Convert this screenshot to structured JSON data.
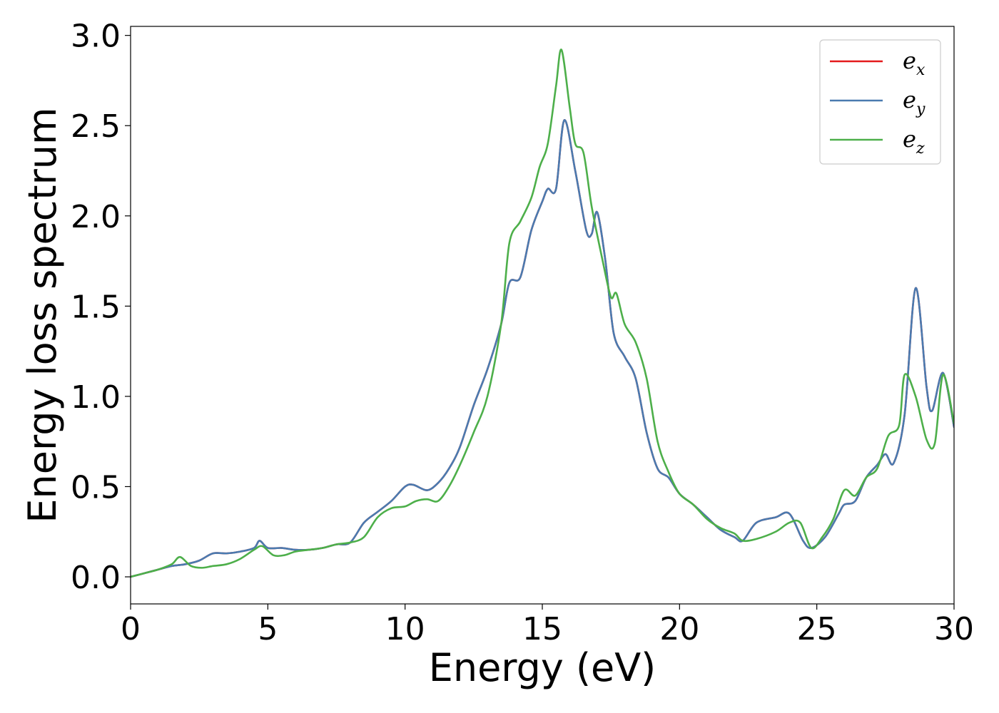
{
  "chart_data": {
    "type": "line",
    "xlabel": "Energy (eV)",
    "ylabel": "Energy loss spectrum",
    "xlim": [
      0,
      30
    ],
    "ylim": [
      -0.15,
      3.05
    ],
    "xticks": [
      0,
      5,
      10,
      15,
      20,
      25,
      30
    ],
    "yticks": [
      0.0,
      0.5,
      1.0,
      1.5,
      2.0,
      2.5,
      3.0
    ],
    "xtick_labels": [
      "0",
      "5",
      "10",
      "15",
      "20",
      "25",
      "30"
    ],
    "ytick_labels": [
      "0.0",
      "0.5",
      "1.0",
      "1.5",
      "2.0",
      "2.5",
      "3.0"
    ],
    "grid": false,
    "legend_position": "top-right",
    "colors": {
      "e_x": "#e41a1c",
      "e_y": "#4a7bb0",
      "e_z": "#4daf4a"
    },
    "series": [
      {
        "name": "e_x",
        "legend_base": "e",
        "legend_sub": "x",
        "color": "#e41a1c",
        "x": [
          0,
          0.5,
          1,
          1.5,
          2,
          2.5,
          3,
          3.5,
          4,
          4.5,
          4.7,
          5,
          5.5,
          6,
          6.5,
          7,
          7.5,
          8,
          8.5,
          9,
          9.5,
          10,
          10.3,
          10.8,
          11.2,
          11.6,
          12,
          12.5,
          13,
          13.5,
          13.8,
          14.2,
          14.6,
          15,
          15.2,
          15.5,
          15.8,
          16.2,
          16.6,
          16.8,
          17,
          17.3,
          17.6,
          18,
          18.4,
          18.8,
          19.2,
          19.6,
          20,
          20.5,
          21,
          21.5,
          22,
          22.3,
          22.8,
          23.5,
          24,
          24.5,
          24.8,
          25.3,
          25.8,
          26,
          26.4,
          26.8,
          27.2,
          27.5,
          27.8,
          28.2,
          28.6,
          29,
          29.2,
          29.6,
          30
        ],
        "y": [
          0.0,
          0.02,
          0.04,
          0.06,
          0.07,
          0.09,
          0.13,
          0.13,
          0.14,
          0.16,
          0.2,
          0.16,
          0.16,
          0.15,
          0.15,
          0.16,
          0.18,
          0.19,
          0.3,
          0.36,
          0.42,
          0.5,
          0.51,
          0.48,
          0.52,
          0.6,
          0.72,
          0.95,
          1.15,
          1.4,
          1.63,
          1.66,
          1.92,
          2.08,
          2.15,
          2.15,
          2.53,
          2.25,
          1.92,
          1.9,
          2.02,
          1.75,
          1.35,
          1.22,
          1.1,
          0.8,
          0.6,
          0.55,
          0.46,
          0.4,
          0.33,
          0.26,
          0.22,
          0.2,
          0.3,
          0.33,
          0.35,
          0.2,
          0.16,
          0.22,
          0.35,
          0.4,
          0.42,
          0.55,
          0.62,
          0.68,
          0.63,
          0.9,
          1.6,
          1.05,
          0.92,
          1.13,
          0.83
        ]
      },
      {
        "name": "e_y",
        "legend_base": "e",
        "legend_sub": "y",
        "color": "#4a7bb0",
        "x": [
          0,
          0.5,
          1,
          1.5,
          2,
          2.5,
          3,
          3.5,
          4,
          4.5,
          4.7,
          5,
          5.5,
          6,
          6.5,
          7,
          7.5,
          8,
          8.5,
          9,
          9.5,
          10,
          10.3,
          10.8,
          11.2,
          11.6,
          12,
          12.5,
          13,
          13.5,
          13.8,
          14.2,
          14.6,
          15,
          15.2,
          15.5,
          15.8,
          16.2,
          16.6,
          16.8,
          17,
          17.3,
          17.6,
          18,
          18.4,
          18.8,
          19.2,
          19.6,
          20,
          20.5,
          21,
          21.5,
          22,
          22.3,
          22.8,
          23.5,
          24,
          24.5,
          24.8,
          25.3,
          25.8,
          26,
          26.4,
          26.8,
          27.2,
          27.5,
          27.8,
          28.2,
          28.6,
          29,
          29.2,
          29.6,
          30
        ],
        "y": [
          0.0,
          0.02,
          0.04,
          0.06,
          0.07,
          0.09,
          0.13,
          0.13,
          0.14,
          0.16,
          0.2,
          0.16,
          0.16,
          0.15,
          0.15,
          0.16,
          0.18,
          0.19,
          0.3,
          0.36,
          0.42,
          0.5,
          0.51,
          0.48,
          0.52,
          0.6,
          0.72,
          0.95,
          1.15,
          1.4,
          1.63,
          1.66,
          1.92,
          2.08,
          2.15,
          2.15,
          2.53,
          2.25,
          1.92,
          1.9,
          2.02,
          1.75,
          1.35,
          1.22,
          1.1,
          0.8,
          0.6,
          0.55,
          0.46,
          0.4,
          0.33,
          0.26,
          0.22,
          0.2,
          0.3,
          0.33,
          0.35,
          0.2,
          0.16,
          0.22,
          0.35,
          0.4,
          0.42,
          0.55,
          0.62,
          0.68,
          0.63,
          0.9,
          1.6,
          1.05,
          0.92,
          1.13,
          0.83
        ]
      },
      {
        "name": "e_z",
        "legend_base": "e",
        "legend_sub": "z",
        "color": "#4daf4a",
        "x": [
          0,
          0.5,
          1,
          1.5,
          1.8,
          2.2,
          2.6,
          3,
          3.5,
          4,
          4.5,
          4.8,
          5.2,
          5.6,
          6,
          6.5,
          7,
          7.5,
          8,
          8.5,
          9,
          9.5,
          10,
          10.4,
          10.8,
          11.2,
          11.6,
          12,
          12.5,
          13,
          13.5,
          13.8,
          14.2,
          14.6,
          14.9,
          15.2,
          15.5,
          15.7,
          16,
          16.2,
          16.5,
          16.8,
          17.2,
          17.5,
          17.7,
          18,
          18.4,
          18.8,
          19.2,
          19.6,
          20,
          20.5,
          21,
          21.5,
          22,
          22.3,
          22.8,
          23.5,
          24,
          24.4,
          24.8,
          25.2,
          25.6,
          26,
          26.4,
          26.8,
          27.2,
          27.6,
          28,
          28.2,
          28.6,
          29,
          29.3,
          29.6,
          30
        ],
        "y": [
          0.0,
          0.02,
          0.04,
          0.07,
          0.11,
          0.06,
          0.05,
          0.06,
          0.07,
          0.1,
          0.15,
          0.17,
          0.12,
          0.12,
          0.14,
          0.15,
          0.16,
          0.18,
          0.19,
          0.22,
          0.33,
          0.38,
          0.39,
          0.42,
          0.43,
          0.42,
          0.5,
          0.62,
          0.8,
          1.0,
          1.4,
          1.85,
          1.97,
          2.1,
          2.27,
          2.4,
          2.72,
          2.92,
          2.6,
          2.4,
          2.35,
          2.05,
          1.75,
          1.55,
          1.57,
          1.4,
          1.3,
          1.1,
          0.75,
          0.58,
          0.46,
          0.4,
          0.32,
          0.27,
          0.24,
          0.2,
          0.21,
          0.25,
          0.3,
          0.3,
          0.16,
          0.22,
          0.32,
          0.48,
          0.45,
          0.55,
          0.6,
          0.78,
          0.84,
          1.12,
          1.0,
          0.76,
          0.74,
          1.12,
          0.85
        ]
      }
    ]
  }
}
